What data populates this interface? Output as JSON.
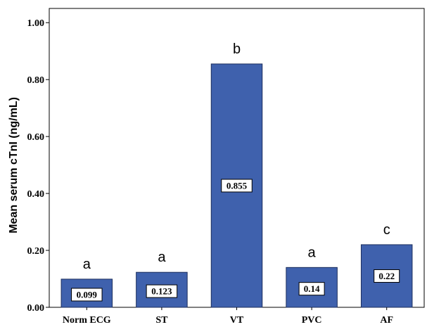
{
  "chart_data": {
    "type": "bar",
    "title": "",
    "xlabel": "",
    "ylabel": "Mean serum cTnI (ng/mL)",
    "ylim": [
      0,
      1.05
    ],
    "yticks": [
      0.0,
      0.2,
      0.4,
      0.6,
      0.8,
      1.0
    ],
    "ytick_labels": [
      "0.00",
      "0.20",
      "0.40",
      "0.60",
      "0.80",
      "1.00"
    ],
    "categories": [
      "Norm ECG",
      "ST",
      "VT",
      "PVC",
      "AF"
    ],
    "values": [
      0.099,
      0.123,
      0.855,
      0.14,
      0.22
    ],
    "value_labels": [
      "0.099",
      "0.123",
      "0.855",
      "0.14",
      "0.22"
    ],
    "significance_letters": [
      "a",
      "a",
      "b",
      "a",
      "c"
    ],
    "bar_color": "#3f61ad",
    "grid": false,
    "legend": "none"
  }
}
